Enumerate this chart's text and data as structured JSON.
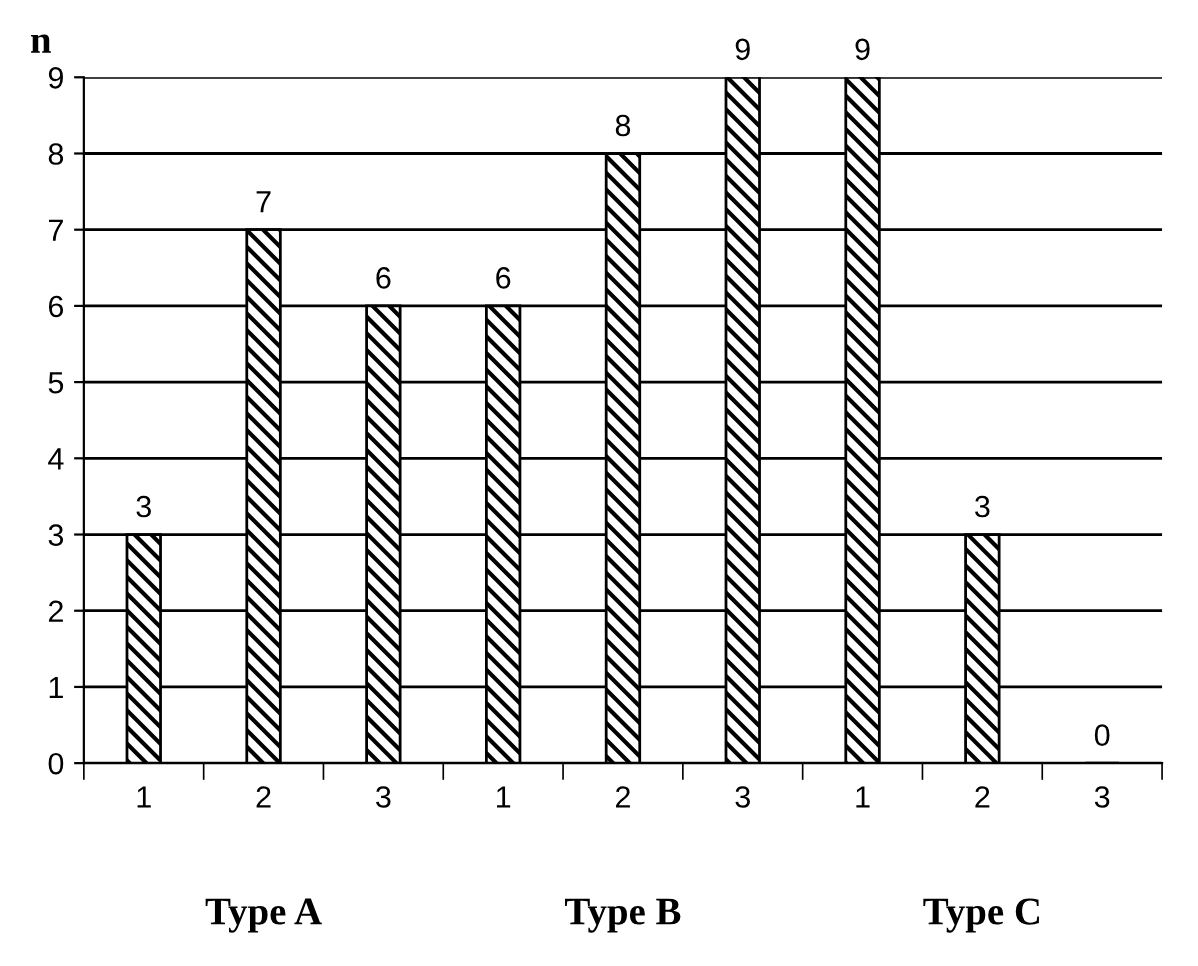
{
  "chart_data": {
    "type": "bar",
    "ylabel": "n",
    "categories": [
      "1",
      "2",
      "3",
      "1",
      "2",
      "3",
      "1",
      "2",
      "3"
    ],
    "values": [
      3,
      7,
      6,
      6,
      8,
      9,
      9,
      3,
      0
    ],
    "color": "#000000",
    "ylim": [
      0,
      9
    ],
    "yticks": [
      0,
      1,
      2,
      3,
      4,
      5,
      6,
      7,
      8,
      9
    ],
    "grid": "y",
    "data_labels": true,
    "annotations": [
      "Type A",
      "Type B",
      "Type C"
    ]
  }
}
